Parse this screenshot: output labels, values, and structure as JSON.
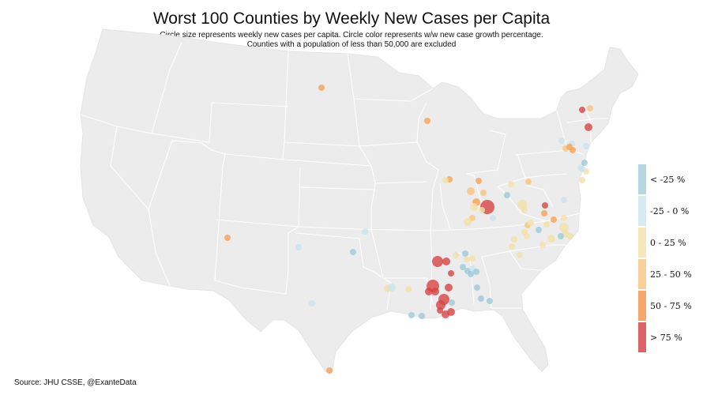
{
  "title": "Worst 100 Counties by Weekly New Cases per Capita",
  "subtitle_line1": "Circle size represents weekly new cases per capita. Circle color represents w/w new case growth percentage.",
  "subtitle_line2": "Counties with a population of less than 50,000 are excluded",
  "source": "Source: JHU CSSE, @ExanteData",
  "colors": {
    "land": "#ececec",
    "border": "#ffffff",
    "lt_neg25": "#9ccbd9",
    "neg25_0": "#c9e4ed",
    "0_25": "#f3e1a8",
    "25_50": "#f8c57e",
    "50_75": "#f7a154",
    "gt_75": "#d84545"
  },
  "legend": [
    {
      "label": "< -25 %",
      "color": "#b7d7e0"
    },
    {
      "label": "-25 - 0 %",
      "color": "#d6eaf1"
    },
    {
      "label": "0 - 25 %",
      "color": "#f5e6bb"
    },
    {
      "label": "25 - 50 %",
      "color": "#f9d09c"
    },
    {
      "label": "50 - 75 %",
      "color": "#f7a868"
    },
    {
      "label": "> 75 %",
      "color": "#dc6464"
    }
  ]
}
